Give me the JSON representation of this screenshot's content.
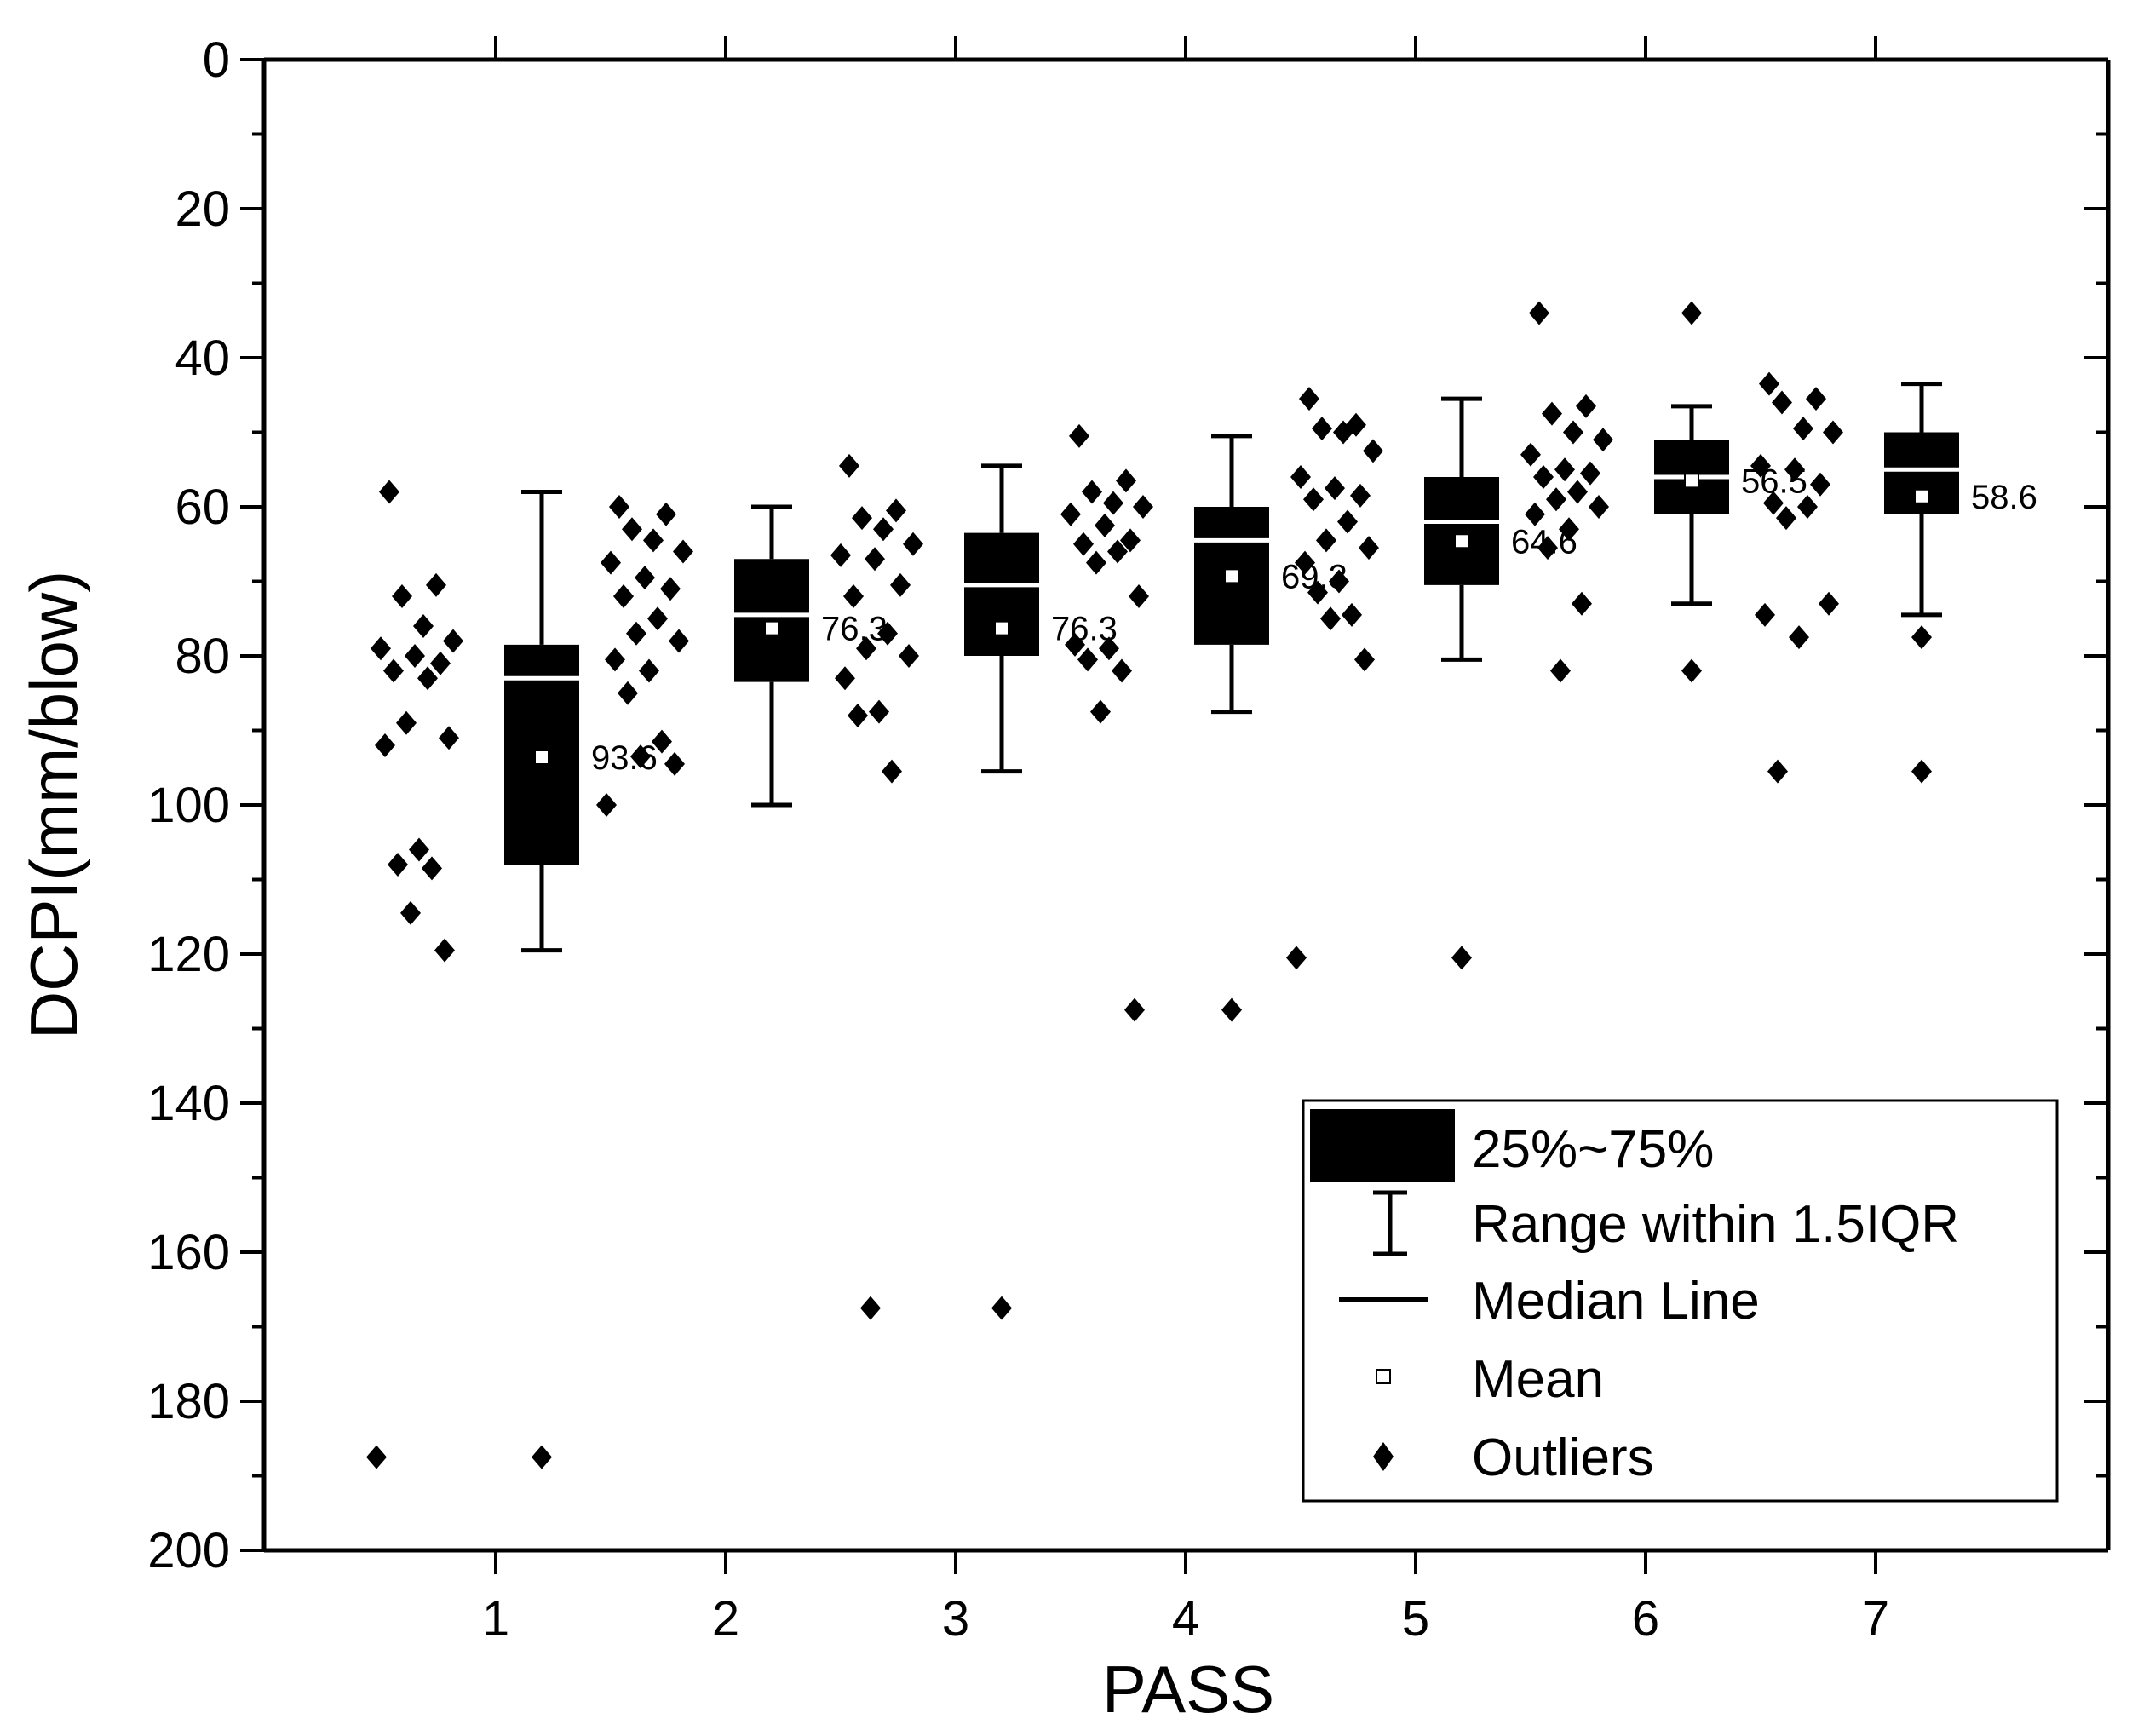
{
  "chart_data": {
    "type": "box",
    "xlabel": "PASS",
    "ylabel": "DCPI(mm/blow)",
    "ylim": [
      0,
      200
    ],
    "y_inverted": true,
    "yticks": [
      0,
      20,
      40,
      60,
      80,
      100,
      120,
      140,
      160,
      180,
      200
    ],
    "categories": [
      "1",
      "2",
      "3",
      "4",
      "5",
      "6",
      "7"
    ],
    "boxes": [
      {
        "pass": "1",
        "q1": 78.5,
        "q3": 108,
        "median": 83,
        "mean": 93.6,
        "mean_label": "93.6",
        "whisker_low": 58,
        "whisker_high": 119.5,
        "outliers": [
          187.5
        ],
        "points": [
          58,
          70.5,
          72,
          76,
          78,
          79,
          80,
          81,
          82,
          83,
          89,
          91,
          92,
          106,
          108,
          108.5,
          114.5,
          119.5,
          187.5
        ]
      },
      {
        "pass": "2",
        "q1": 67,
        "q3": 83.5,
        "median": 74.5,
        "mean": 76.3,
        "mean_label": "76.3",
        "whisker_low": 60,
        "whisker_high": 100,
        "outliers": [],
        "points": [
          60,
          61,
          63,
          64.5,
          66,
          67.5,
          69.5,
          71,
          72,
          75,
          77,
          78,
          80.5,
          82,
          85,
          91.5,
          93.5,
          94.5,
          100
        ]
      },
      {
        "pass": "3",
        "q1": 63.5,
        "q3": 80,
        "median": 70.5,
        "mean": 76.3,
        "mean_label": "76.3",
        "whisker_low": 54.5,
        "whisker_high": 95.5,
        "outliers": [
          167.5
        ],
        "points": [
          54.5,
          60.5,
          61.5,
          63,
          65,
          66.5,
          67,
          70.5,
          72,
          77,
          79,
          80,
          83,
          87.5,
          88,
          95.5,
          167.5
        ]
      },
      {
        "pass": "4",
        "q1": 60,
        "q3": 78.5,
        "median": 64.5,
        "mean": 69.3,
        "mean_label": "69.3",
        "whisker_low": 50.5,
        "whisker_high": 87.5,
        "outliers": [
          127.5
        ],
        "points": [
          50.5,
          56.5,
          58,
          59.5,
          60,
          61,
          62.5,
          64.5,
          65,
          66,
          67.5,
          72,
          78.5,
          79,
          80.5,
          82,
          87.5,
          127.5
        ]
      },
      {
        "pass": "5",
        "q1": 56,
        "q3": 70.5,
        "median": 62,
        "mean": 64.6,
        "mean_label": "64.6",
        "whisker_low": 45.5,
        "whisker_high": 80.5,
        "outliers": [
          120.5
        ],
        "points": [
          45.5,
          49,
          49.5,
          50,
          52.5,
          56,
          57.5,
          58.5,
          59,
          62,
          64.5,
          65.5,
          67.5,
          70,
          71.5,
          74.5,
          75,
          80.5,
          120.5
        ]
      },
      {
        "pass": "6",
        "q1": 51,
        "q3": 61,
        "median": 56,
        "mean": 56.5,
        "mean_label": "56.5",
        "whisker_low": 46.5,
        "whisker_high": 73,
        "outliers": [
          34,
          82
        ],
        "points": [
          34,
          46.5,
          47.5,
          50,
          51,
          53,
          55,
          55.5,
          56,
          58,
          59,
          60,
          61,
          63,
          65.5,
          73,
          82
        ]
      },
      {
        "pass": "7",
        "q1": 50,
        "q3": 61,
        "median": 55,
        "mean": 58.6,
        "mean_label": "58.6",
        "whisker_low": 43.5,
        "whisker_high": 74.5,
        "outliers": [
          77.5,
          95.5
        ],
        "points": [
          43.5,
          45.5,
          46,
          49.5,
          50,
          54.5,
          55,
          57,
          59.5,
          60,
          61.5,
          73,
          74.5,
          77.5,
          95.5
        ]
      }
    ]
  },
  "legend": {
    "items": [
      {
        "key": "box",
        "label": "25%~75%"
      },
      {
        "key": "range",
        "label": "Range within 1.5IQR"
      },
      {
        "key": "median",
        "label": "Median Line"
      },
      {
        "key": "mean",
        "label": "Mean"
      },
      {
        "key": "outliers",
        "label": "Outliers"
      }
    ]
  }
}
